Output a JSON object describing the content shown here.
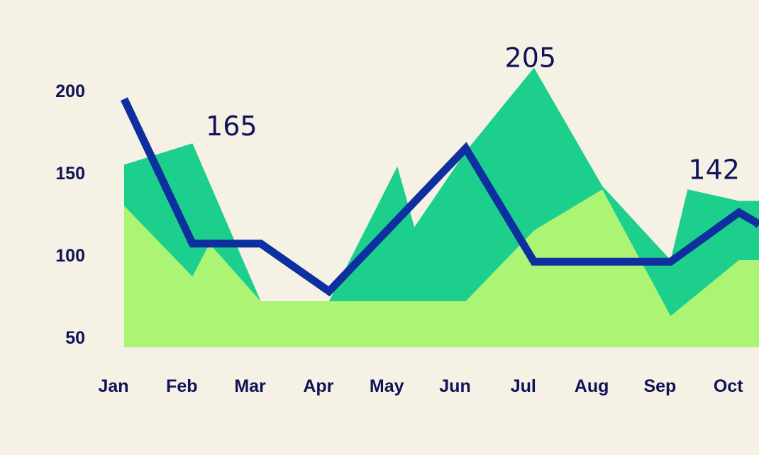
{
  "chart_data": {
    "type": "area",
    "categories": [
      "Jan",
      "Feb",
      "Mar",
      "Apr",
      "May",
      "Jun",
      "Jul",
      "Aug",
      "Sep",
      "Oct"
    ],
    "y_ticks": [
      "50",
      "100",
      "150",
      "200"
    ],
    "ylim": [
      45,
      215
    ],
    "grid": false,
    "legend": "none",
    "series": [
      {
        "type": "area",
        "color": "#1ccf8c",
        "points": [
          {
            "x": "Jan",
            "y": 155
          },
          {
            "x": "Feb",
            "y": 168
          },
          {
            "x": "Mar",
            "y": 72
          },
          {
            "x": "Apr",
            "y": 72
          },
          {
            "x": "May",
            "y": 154
          },
          {
            "x": "May",
            "y": 117
          },
          {
            "x": "Jun",
            "y": 163
          },
          {
            "x": "Jul",
            "y": 214
          },
          {
            "x": "Aug",
            "y": 142
          },
          {
            "x": "Sep",
            "y": 97
          },
          {
            "x": "Sep",
            "y": 140
          },
          {
            "x": "Oct",
            "y": 133
          }
        ]
      },
      {
        "type": "area",
        "color": "#abf474",
        "points": [
          {
            "x": "Jan",
            "y": 130
          },
          {
            "x": "Feb",
            "y": 87
          },
          {
            "x": "Feb",
            "y": 107
          },
          {
            "x": "Mar",
            "y": 72
          },
          {
            "x": "Jun",
            "y": 72
          },
          {
            "x": "Jul",
            "y": 115
          },
          {
            "x": "Aug",
            "y": 140
          },
          {
            "x": "Sep",
            "y": 63
          },
          {
            "x": "Oct",
            "y": 97
          }
        ]
      },
      {
        "type": "line",
        "color": "#0d2fa0",
        "points": [
          {
            "x": "Jan",
            "y": 195
          },
          {
            "x": "Feb",
            "y": 107
          },
          {
            "x": "Mar",
            "y": 107
          },
          {
            "x": "Apr",
            "y": 78
          },
          {
            "x": "Jun",
            "y": 165
          },
          {
            "x": "Jul",
            "y": 96
          },
          {
            "x": "Sep",
            "y": 96
          },
          {
            "x": "Oct",
            "y": 126
          },
          {
            "x": "Oct",
            "y": 120
          }
        ]
      }
    ],
    "data_labels": [
      {
        "x": "Feb",
        "y": 165,
        "text": "165"
      },
      {
        "x": "Jul",
        "y": 205,
        "text": "205"
      },
      {
        "x": "Oct",
        "y": 142,
        "text": "142"
      }
    ]
  }
}
